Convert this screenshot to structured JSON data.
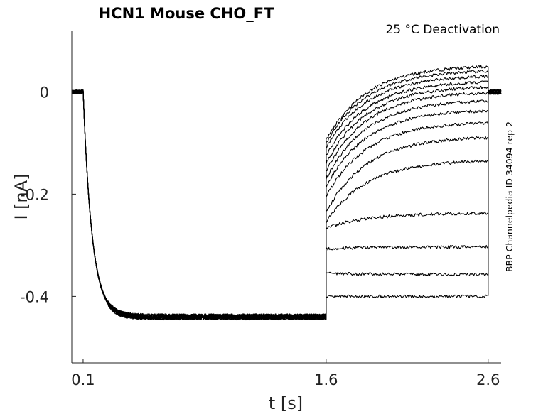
{
  "chart_data": {
    "type": "line",
    "title": "HCN1  Mouse  CHO_FT",
    "subtitle": "25 °C  Deactivation",
    "xlabel": "t [s]",
    "ylabel": "I [nA]",
    "side_label": "BBP Channelpedia ID 34094 rep 2",
    "xlim": [
      0.03,
      2.68
    ],
    "ylim": [
      -0.53,
      0.12
    ],
    "x_ticks": [
      0.1,
      1.6,
      2.6
    ],
    "x_tick_labels": [
      "0.1",
      "1.6",
      "2.6"
    ],
    "y_ticks": [
      0,
      -0.2,
      -0.4
    ],
    "y_tick_labels": [
      "0",
      "-0.2",
      "-0.4"
    ],
    "grid": false,
    "line_color": "#000000",
    "protocol": {
      "baseline_nA": 0.0,
      "activation_start_s": 0.1,
      "activation_end_s": 1.6,
      "activation_steady_nA": -0.44,
      "deactivation_end_s": 2.6,
      "tail_end_s": 2.68
    },
    "series": [
      {
        "start_nA": -0.095,
        "end_nA": 0.052
      },
      {
        "start_nA": -0.1,
        "end_nA": 0.043
      },
      {
        "start_nA": -0.11,
        "end_nA": 0.033
      },
      {
        "start_nA": -0.125,
        "end_nA": 0.022
      },
      {
        "start_nA": -0.14,
        "end_nA": 0.012
      },
      {
        "start_nA": -0.155,
        "end_nA": 0.001
      },
      {
        "start_nA": -0.17,
        "end_nA": -0.015
      },
      {
        "start_nA": -0.185,
        "end_nA": -0.034
      },
      {
        "start_nA": -0.205,
        "end_nA": -0.058
      },
      {
        "start_nA": -0.235,
        "end_nA": -0.087
      },
      {
        "start_nA": -0.255,
        "end_nA": -0.133
      },
      {
        "start_nA": -0.267,
        "end_nA": -0.237
      },
      {
        "start_nA": -0.307,
        "end_nA": -0.303
      },
      {
        "start_nA": -0.355,
        "end_nA": -0.357
      },
      {
        "start_nA": -0.4,
        "end_nA": -0.4
      }
    ]
  }
}
